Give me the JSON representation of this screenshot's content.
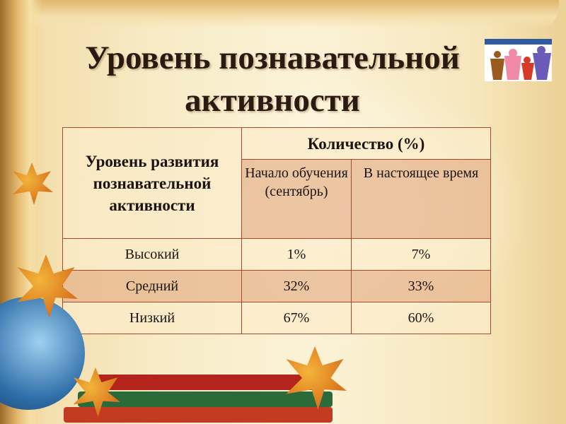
{
  "title": "Уровень познавательной активности",
  "table": {
    "header_row_label": "Уровень развития познавательной активности",
    "header_group": "Количество (%)",
    "sub_headers": [
      "Начало обучения (сентябрь)",
      "В настоящее время"
    ],
    "rows": [
      {
        "level": "Высокий",
        "start": "1%",
        "now": "7%"
      },
      {
        "level": "Средний",
        "start": "32%",
        "now": "33%"
      },
      {
        "level": "Низкий",
        "start": "67%",
        "now": "60%"
      }
    ]
  },
  "colors": {
    "border": "#a44a2e",
    "row_light": "#fbebc8",
    "row_dark": "#e5b48c",
    "title": "#2b1a12"
  }
}
